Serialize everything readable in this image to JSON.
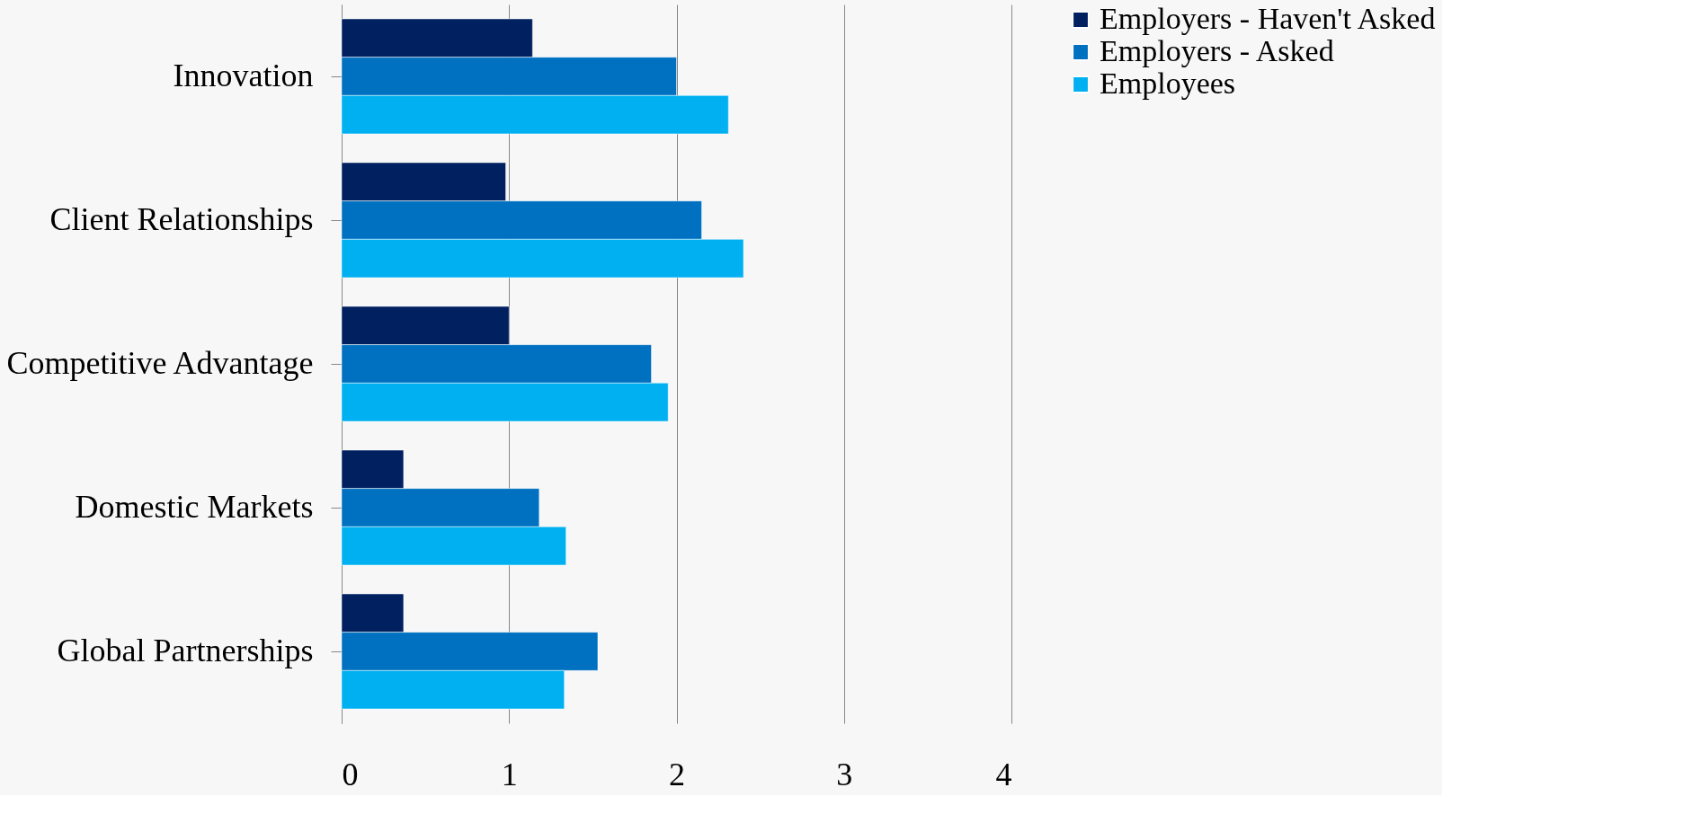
{
  "chart_data": {
    "type": "bar",
    "orientation": "horizontal",
    "categories": [
      "Innovation",
      "Client Relationships",
      "Competitive Advantage",
      "Domestic Markets",
      "Global Partnerships"
    ],
    "series": [
      {
        "name": "Employers - Haven't Asked",
        "color": "#002060",
        "values": [
          1.14,
          0.98,
          1.0,
          0.37,
          0.37
        ]
      },
      {
        "name": "Employers - Asked",
        "color": "#0070c0",
        "values": [
          2.0,
          2.15,
          1.85,
          1.18,
          1.53
        ]
      },
      {
        "name": "Employees",
        "color": "#00b0f0",
        "values": [
          2.31,
          2.4,
          1.95,
          1.34,
          1.33
        ]
      }
    ],
    "xlim": [
      0,
      4
    ],
    "xticks": [
      0,
      1,
      2,
      3,
      4
    ],
    "grid": "x",
    "legend": "right"
  }
}
